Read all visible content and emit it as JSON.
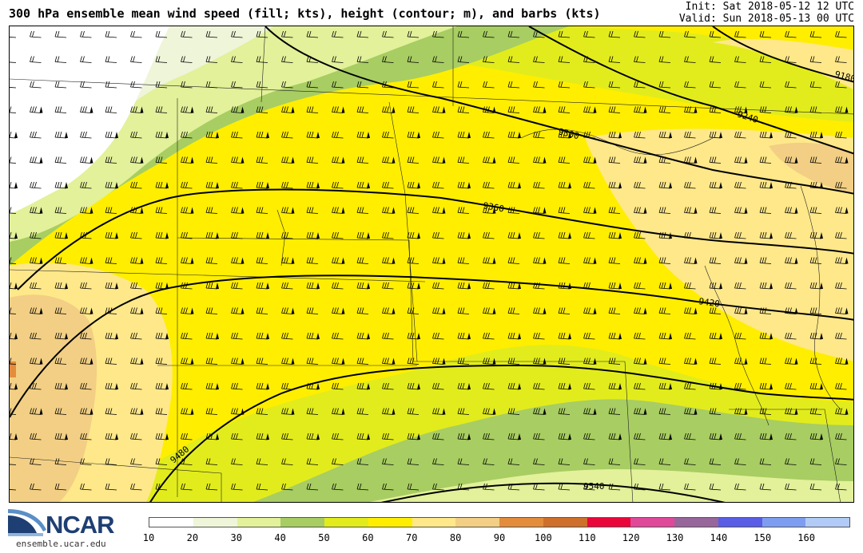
{
  "header": {
    "title": "300 hPa ensemble mean wind speed (fill; kts), height (contour; m), and barbs (kts)",
    "init": "Init: Sat 2018-05-12 12 UTC",
    "valid": "Valid: Sun 2018-05-13 00 UTC"
  },
  "logo": {
    "name": "NCAR",
    "url": "ensemble.ucar.edu"
  },
  "colorbar": {
    "labels": [
      "10",
      "20",
      "30",
      "40",
      "50",
      "60",
      "70",
      "80",
      "90",
      "100",
      "110",
      "120",
      "130",
      "140",
      "150",
      "160"
    ],
    "colors": [
      "#ffffff",
      "#eef5d9",
      "#e2f19a",
      "#a8cd62",
      "#e2ec1c",
      "#ffee00",
      "#ffe88a",
      "#f2cf84",
      "#e38c3c",
      "#cf6f2c",
      "#e8063b",
      "#e0489a",
      "#97669b",
      "#5a5de6",
      "#7d9ef0",
      "#b2cbf6"
    ]
  },
  "map": {
    "contours": [
      {
        "label": "9180"
      },
      {
        "label": "9240"
      },
      {
        "label": "9300"
      },
      {
        "label": "9360"
      },
      {
        "label": "9420"
      },
      {
        "label": "9480"
      },
      {
        "label": "9540"
      }
    ],
    "icons": {
      "barbs": "wind-barb-icon"
    }
  }
}
